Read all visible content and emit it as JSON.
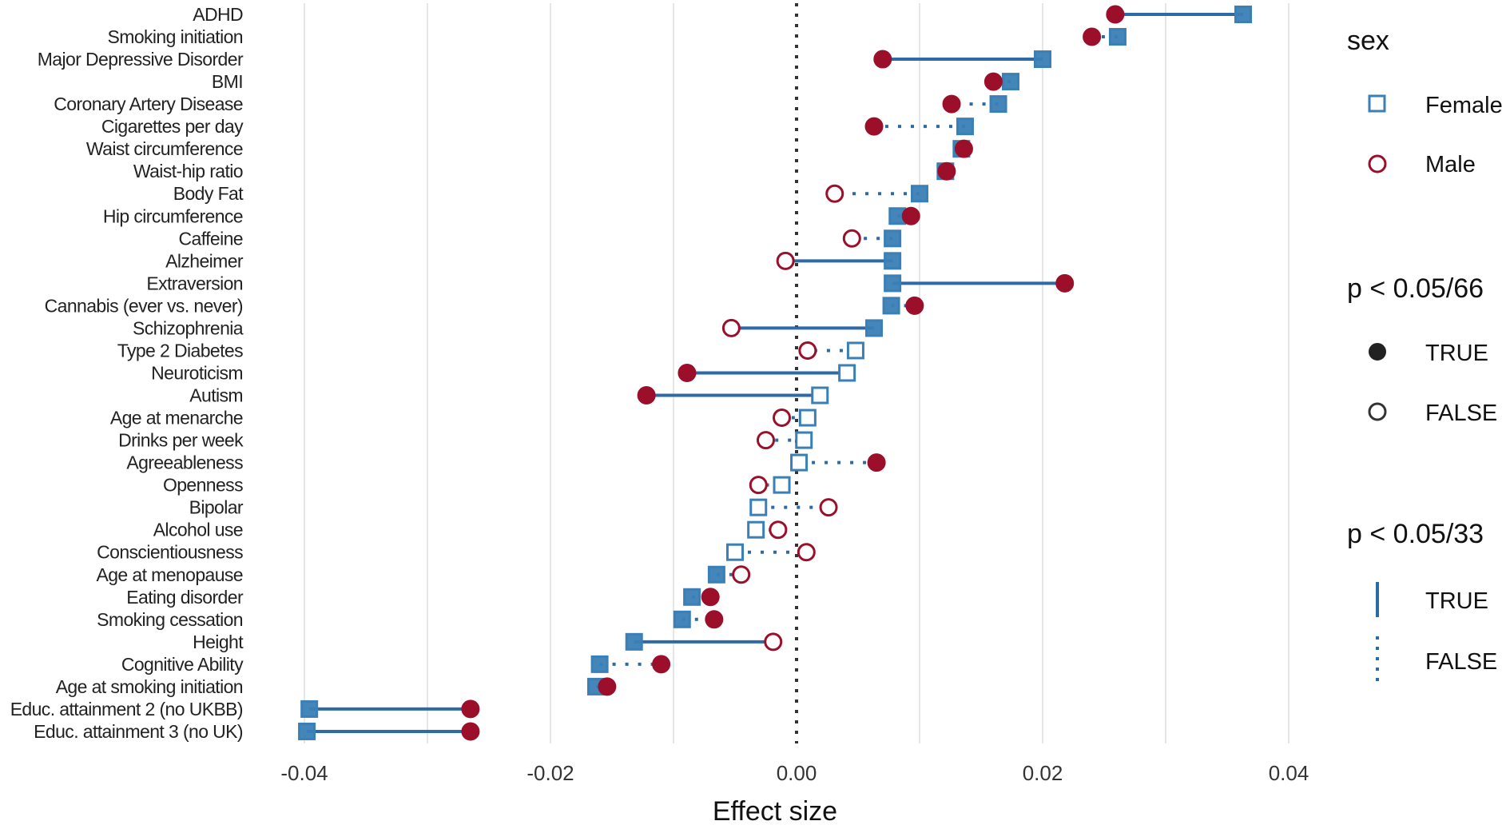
{
  "chart_data": {
    "type": "scatter",
    "subtype": "dumbbell",
    "xlabel": "Effect size",
    "ylabel": "",
    "xlim": [
      -0.042,
      0.042
    ],
    "xticks": [
      -0.04,
      -0.02,
      0.0,
      0.02,
      0.04
    ],
    "xtick_labels": [
      "-0.04",
      "-0.02",
      "0.00",
      "0.02",
      "0.04"
    ],
    "grid": true,
    "reference_line": 0,
    "colors": {
      "Female": "#3a7fb5",
      "Male": "#9b0f2a",
      "line": "#2d6aa8"
    },
    "legend": {
      "placement": "right",
      "sex": {
        "title": "sex",
        "entries": [
          "Female",
          "Male"
        ]
      },
      "sig66": {
        "title": "p < 0.05/66",
        "entries": [
          "TRUE",
          "FALSE"
        ]
      },
      "sig33": {
        "title": "p < 0.05/33",
        "entries": [
          "TRUE",
          "FALSE"
        ]
      }
    },
    "rows": [
      {
        "trait": "ADHD",
        "female": 0.0363,
        "female_sig": true,
        "male": 0.0259,
        "male_sig": true,
        "diff_sig": true
      },
      {
        "trait": "Smoking initiation",
        "female": 0.0261,
        "female_sig": true,
        "male": 0.024,
        "male_sig": true,
        "diff_sig": false
      },
      {
        "trait": "Major Depressive Disorder",
        "female": 0.02,
        "female_sig": true,
        "male": 0.007,
        "male_sig": true,
        "diff_sig": true
      },
      {
        "trait": "BMI",
        "female": 0.0174,
        "female_sig": true,
        "male": 0.016,
        "male_sig": true,
        "diff_sig": false
      },
      {
        "trait": "Coronary Artery Disease",
        "female": 0.0164,
        "female_sig": true,
        "male": 0.0126,
        "male_sig": true,
        "diff_sig": false
      },
      {
        "trait": "Cigarettes per day",
        "female": 0.0137,
        "female_sig": true,
        "male": 0.0063,
        "male_sig": true,
        "diff_sig": false
      },
      {
        "trait": "Waist circumference",
        "female": 0.0134,
        "female_sig": true,
        "male": 0.0136,
        "male_sig": true,
        "diff_sig": false
      },
      {
        "trait": "Waist-hip ratio",
        "female": 0.0121,
        "female_sig": true,
        "male": 0.0122,
        "male_sig": true,
        "diff_sig": false
      },
      {
        "trait": "Body Fat",
        "female": 0.01,
        "female_sig": true,
        "male": 0.0031,
        "male_sig": false,
        "diff_sig": false
      },
      {
        "trait": "Hip circumference",
        "female": 0.0082,
        "female_sig": true,
        "male": 0.0093,
        "male_sig": true,
        "diff_sig": false
      },
      {
        "trait": "Caffeine",
        "female": 0.0078,
        "female_sig": true,
        "male": 0.0045,
        "male_sig": false,
        "diff_sig": false
      },
      {
        "trait": "Alzheimer",
        "female": 0.0078,
        "female_sig": true,
        "male": -0.0009,
        "male_sig": false,
        "diff_sig": true
      },
      {
        "trait": "Extraversion",
        "female": 0.0078,
        "female_sig": true,
        "male": 0.0218,
        "male_sig": true,
        "diff_sig": true
      },
      {
        "trait": "Cannabis (ever vs. never)",
        "female": 0.0077,
        "female_sig": true,
        "male": 0.0096,
        "male_sig": true,
        "diff_sig": false
      },
      {
        "trait": "Schizophrenia",
        "female": 0.0063,
        "female_sig": true,
        "male": -0.0053,
        "male_sig": false,
        "diff_sig": true
      },
      {
        "trait": "Type 2 Diabetes",
        "female": 0.0048,
        "female_sig": false,
        "male": 0.0009,
        "male_sig": false,
        "diff_sig": false
      },
      {
        "trait": "Neuroticism",
        "female": 0.0041,
        "female_sig": false,
        "male": -0.0089,
        "male_sig": true,
        "diff_sig": true
      },
      {
        "trait": "Autism",
        "female": 0.0019,
        "female_sig": false,
        "male": -0.0122,
        "male_sig": true,
        "diff_sig": true
      },
      {
        "trait": "Age at menarche",
        "female": 0.0009,
        "female_sig": false,
        "male": -0.0012,
        "male_sig": false,
        "diff_sig": false
      },
      {
        "trait": "Drinks per week",
        "female": 0.0006,
        "female_sig": false,
        "male": -0.0025,
        "male_sig": false,
        "diff_sig": false
      },
      {
        "trait": "Agreeableness",
        "female": 0.0002,
        "female_sig": false,
        "male": 0.0065,
        "male_sig": true,
        "diff_sig": false
      },
      {
        "trait": "Openness",
        "female": -0.0012,
        "female_sig": false,
        "male": -0.0031,
        "male_sig": false,
        "diff_sig": false
      },
      {
        "trait": "Bipolar",
        "female": -0.0031,
        "female_sig": false,
        "male": 0.0026,
        "male_sig": false,
        "diff_sig": false
      },
      {
        "trait": "Alcohol use",
        "female": -0.0033,
        "female_sig": false,
        "male": -0.0015,
        "male_sig": false,
        "diff_sig": false
      },
      {
        "trait": "Conscientiousness",
        "female": -0.005,
        "female_sig": false,
        "male": 0.0008,
        "male_sig": false,
        "diff_sig": false
      },
      {
        "trait": "Age at menopause",
        "female": -0.0065,
        "female_sig": true,
        "male": -0.0045,
        "male_sig": false,
        "diff_sig": false
      },
      {
        "trait": "Eating disorder",
        "female": -0.0085,
        "female_sig": true,
        "male": -0.007,
        "male_sig": true,
        "diff_sig": false
      },
      {
        "trait": "Smoking cessation",
        "female": -0.0093,
        "female_sig": true,
        "male": -0.0067,
        "male_sig": true,
        "diff_sig": false
      },
      {
        "trait": "Height",
        "female": -0.0132,
        "female_sig": true,
        "male": -0.0019,
        "male_sig": false,
        "diff_sig": true
      },
      {
        "trait": "Cognitive Ability",
        "female": -0.016,
        "female_sig": true,
        "male": -0.011,
        "male_sig": true,
        "diff_sig": false
      },
      {
        "trait": "Age at smoking initiation",
        "female": -0.0163,
        "female_sig": true,
        "male": -0.0154,
        "male_sig": true,
        "diff_sig": false
      },
      {
        "trait": "Educ. attainment 2 (no UKBB)",
        "female": -0.0396,
        "female_sig": true,
        "male": -0.0265,
        "male_sig": true,
        "diff_sig": true
      },
      {
        "trait": "Educ. attainment 3 (no UK)",
        "female": -0.0398,
        "female_sig": true,
        "male": -0.0265,
        "male_sig": true,
        "diff_sig": true
      }
    ]
  }
}
